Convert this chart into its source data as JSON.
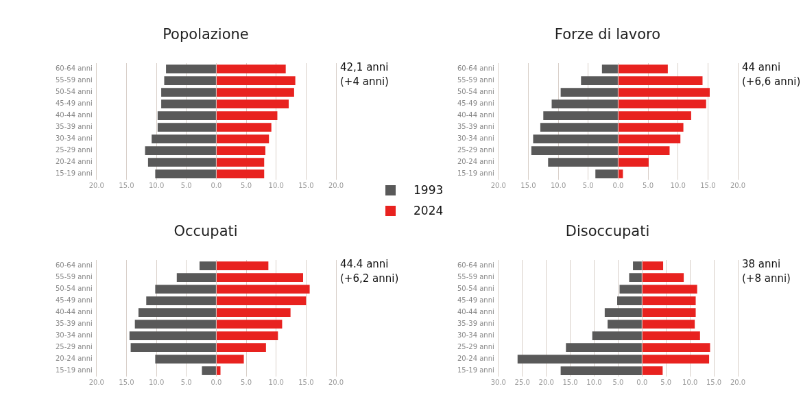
{
  "chart_data": [
    {
      "type": "bar",
      "title": "Popolazione",
      "orientation": "horizontal",
      "stacked": true,
      "grid": "x",
      "legend": "bottom right",
      "categories": [
        "60-64 anni",
        "55-59 anni",
        "50-54 anni",
        "45-49 anni",
        "40-44 anni",
        "35-39 anni",
        "30-34 anni",
        "25-29 anni",
        "20-24 anni",
        "15-19 anni"
      ],
      "series": [
        {
          "name": "1993",
          "color": "#595959",
          "values": [
            -8.4,
            -8.7,
            -9.2,
            -9.2,
            -9.8,
            -9.8,
            -10.8,
            -11.9,
            -11.4,
            -10.2
          ]
        },
        {
          "name": "2024",
          "color": "#e8221f",
          "values": [
            11.6,
            13.2,
            13.0,
            12.1,
            10.2,
            9.2,
            8.8,
            8.2,
            8.0,
            8.0
          ]
        }
      ],
      "xlim": [
        -20,
        20
      ],
      "xticks": [
        {
          "value": -20,
          "label": "20.0"
        },
        {
          "value": -15,
          "label": "15.0"
        },
        {
          "value": -10,
          "label": "10.0"
        },
        {
          "value": -5,
          "label": "5.0"
        },
        {
          "value": 0,
          "label": "0.0"
        },
        {
          "value": 5,
          "label": "5.0"
        },
        {
          "value": 10,
          "label": "10.0"
        },
        {
          "value": 15,
          "label": "15.0"
        },
        {
          "value": 20,
          "label": "20.0"
        }
      ],
      "annotations": [
        "42,1 anni",
        "(+4 anni)"
      ]
    },
    {
      "type": "bar",
      "title": "Forze di lavoro",
      "orientation": "horizontal",
      "stacked": true,
      "grid": "x",
      "categories": [
        "60-64 anni",
        "55-59 anni",
        "50-54 anni",
        "45-49 anni",
        "40-44 anni",
        "35-39 anni",
        "30-34 anni",
        "25-29 anni",
        "20-24 anni",
        "15-19 anni"
      ],
      "series": [
        {
          "name": "1993",
          "color": "#595959",
          "values": [
            -2.7,
            -6.2,
            -9.6,
            -11.1,
            -12.5,
            -13.0,
            -14.2,
            -14.5,
            -11.7,
            -3.8
          ]
        },
        {
          "name": "2024",
          "color": "#e8221f",
          "values": [
            8.3,
            14.1,
            15.3,
            14.7,
            12.2,
            10.9,
            10.4,
            8.6,
            5.1,
            0.8
          ]
        }
      ],
      "xlim": [
        -20,
        20
      ],
      "xticks": [
        {
          "value": -20,
          "label": "20.0"
        },
        {
          "value": -15,
          "label": "15.0"
        },
        {
          "value": -10,
          "label": "10.0"
        },
        {
          "value": -5,
          "label": "5.0"
        },
        {
          "value": 0,
          "label": "0.0"
        },
        {
          "value": 5,
          "label": "5.0"
        },
        {
          "value": 10,
          "label": "10.0"
        },
        {
          "value": 15,
          "label": "15.0"
        },
        {
          "value": 20,
          "label": "20.0"
        }
      ],
      "annotations": [
        "44 anni",
        "(+6,6 anni)"
      ]
    },
    {
      "type": "bar",
      "title": "Occupati",
      "orientation": "horizontal",
      "stacked": true,
      "grid": "x",
      "categories": [
        "60-64 anni",
        "55-59 anni",
        "50-54 anni",
        "45-49 anni",
        "40-44 anni",
        "35-39 anni",
        "30-34 anni",
        "25-29 anni",
        "20-24 anni",
        "15-19 anni"
      ],
      "series": [
        {
          "name": "1993",
          "color": "#595959",
          "values": [
            -2.8,
            -6.6,
            -10.2,
            -11.7,
            -13.0,
            -13.6,
            -14.5,
            -14.3,
            -10.2,
            -2.4
          ]
        },
        {
          "name": "2024",
          "color": "#e8221f",
          "values": [
            8.7,
            14.5,
            15.6,
            15.0,
            12.4,
            11.0,
            10.3,
            8.3,
            4.6,
            0.7
          ]
        }
      ],
      "xlim": [
        -20,
        20
      ],
      "xticks": [
        {
          "value": -20,
          "label": "20.0"
        },
        {
          "value": -15,
          "label": "15.0"
        },
        {
          "value": -10,
          "label": "10.0"
        },
        {
          "value": -5,
          "label": "5.0"
        },
        {
          "value": 0,
          "label": "0.0"
        },
        {
          "value": 5,
          "label": "5.0"
        },
        {
          "value": 10,
          "label": "10.0"
        },
        {
          "value": 15,
          "label": "15.0"
        },
        {
          "value": 20,
          "label": "20.0"
        }
      ],
      "annotations": [
        "44.4 anni",
        "(+6,2 anni)"
      ]
    },
    {
      "type": "bar",
      "title": "Disoccupati",
      "orientation": "horizontal",
      "stacked": true,
      "grid": "x",
      "categories": [
        "60-64 anni",
        "55-59 anni",
        "50-54 anni",
        "45-49 anni",
        "40-44 anni",
        "35-39 anni",
        "30-34 anni",
        "25-29 anni",
        "20-24 anni",
        "15-19 anni"
      ],
      "series": [
        {
          "name": "1993",
          "color": "#595959",
          "values": [
            -1.9,
            -2.7,
            -4.7,
            -5.2,
            -7.8,
            -7.2,
            -10.4,
            -15.9,
            -26.0,
            -17.0
          ]
        },
        {
          "name": "2024",
          "color": "#e8221f",
          "values": [
            4.4,
            8.7,
            11.5,
            11.2,
            11.2,
            11.0,
            12.1,
            14.2,
            14.0,
            4.3
          ]
        }
      ],
      "xlim": [
        -30,
        20
      ],
      "xticks": [
        {
          "value": -30,
          "label": "30.0"
        },
        {
          "value": -25,
          "label": "25.0"
        },
        {
          "value": -20,
          "label": "20.0"
        },
        {
          "value": -15,
          "label": "15.0"
        },
        {
          "value": -10,
          "label": "10.0"
        },
        {
          "value": -5,
          "label": "5.0"
        },
        {
          "value": 0,
          "label": "0.0"
        },
        {
          "value": 5,
          "label": "5.0"
        },
        {
          "value": 10,
          "label": "10.0"
        },
        {
          "value": 15,
          "label": "15.0"
        },
        {
          "value": 20,
          "label": "20.0"
        }
      ],
      "annotations": [
        "38 anni",
        "(+8 anni)"
      ]
    }
  ]
}
